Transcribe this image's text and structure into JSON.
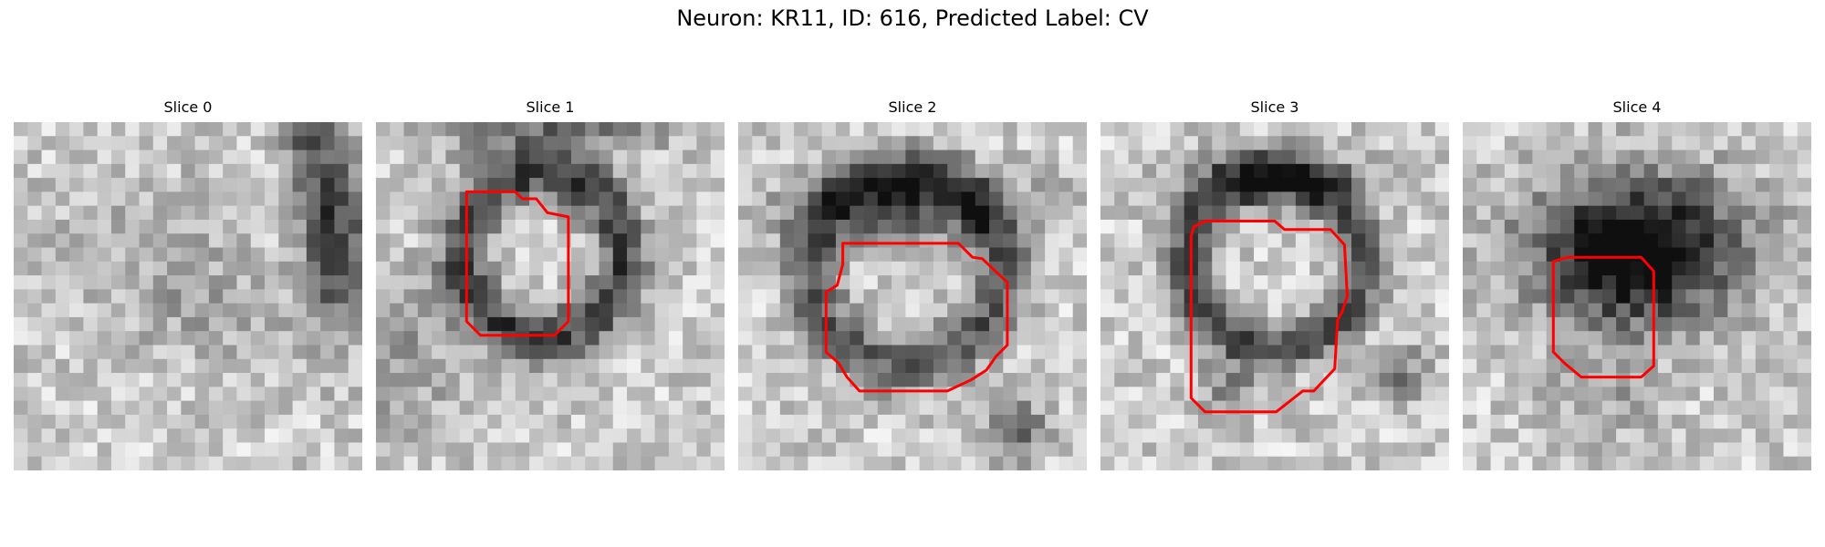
{
  "figure": {
    "title": "Neuron: KR11, ID: 616, Predicted Label: CV"
  },
  "panels": [
    {
      "title": "Slice 0",
      "has_roi": false
    },
    {
      "title": "Slice 1",
      "has_roi": true
    },
    {
      "title": "Slice 2",
      "has_roi": true
    },
    {
      "title": "Slice 3",
      "has_roi": true
    },
    {
      "title": "Slice 4",
      "has_roi": true
    }
  ],
  "colors": {
    "roi_outline": "#ff0000",
    "image_dark": "#1a1a1a",
    "image_light": "#f2f2f2"
  }
}
